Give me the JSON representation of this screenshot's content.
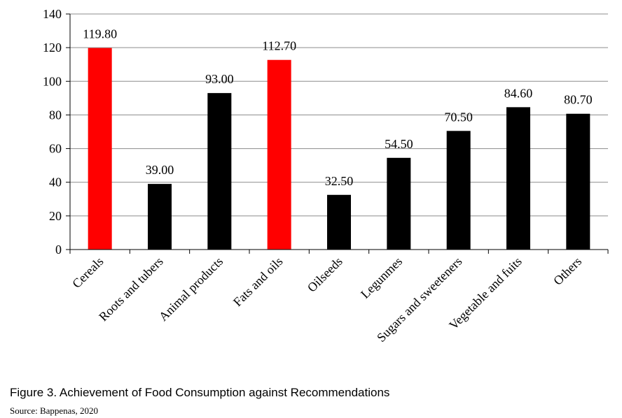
{
  "figure": {
    "caption": "Figure 3. Achievement of Food Consumption against Recommendations",
    "source": "Source: Bappenas, 2020"
  },
  "colors": {
    "highlight": "#ff0000",
    "default": "#000000",
    "grid": "#8c8c8c"
  },
  "chart_data": {
    "type": "bar",
    "title": "",
    "xlabel": "",
    "ylabel": "",
    "ylim": [
      0,
      140
    ],
    "yticks": [
      0,
      20,
      40,
      60,
      80,
      100,
      120,
      140
    ],
    "grid": true,
    "categories": [
      "Cereals",
      "Roots and tubers",
      "Animal products",
      "Fats and oils",
      "Oilseeds",
      "Legunmes",
      "Sugars and sweeteners",
      "Vegetable and fuits",
      "Others"
    ],
    "values": [
      119.8,
      39.0,
      93.0,
      112.7,
      32.5,
      54.5,
      70.5,
      84.6,
      80.7
    ],
    "data_labels": [
      "119.80",
      "39.00",
      "93.00",
      "112.70",
      "32.50",
      "54.50",
      "70.50",
      "84.60",
      "80.70"
    ],
    "highlighted": [
      true,
      false,
      false,
      true,
      false,
      false,
      false,
      false,
      false
    ]
  }
}
